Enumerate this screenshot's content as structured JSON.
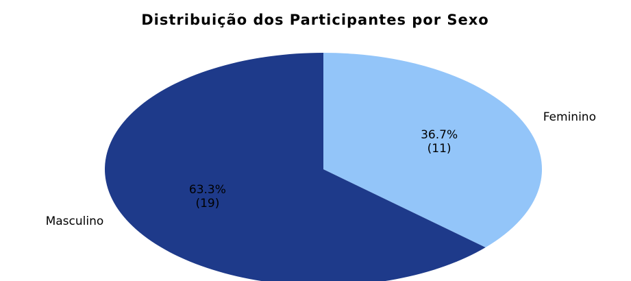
{
  "chart_data": {
    "type": "pie",
    "title": "Distribuição dos Participantes por Sexo",
    "categories": [
      "Feminino",
      "Masculino"
    ],
    "values": [
      36.7,
      63.3
    ],
    "value_labels": [
      "36.7%",
      "63.3%"
    ],
    "counts": [
      11,
      19
    ],
    "count_labels": [
      "(11)",
      "(19)"
    ],
    "colors": [
      "#93c5f9",
      "#1e3a8a"
    ]
  }
}
